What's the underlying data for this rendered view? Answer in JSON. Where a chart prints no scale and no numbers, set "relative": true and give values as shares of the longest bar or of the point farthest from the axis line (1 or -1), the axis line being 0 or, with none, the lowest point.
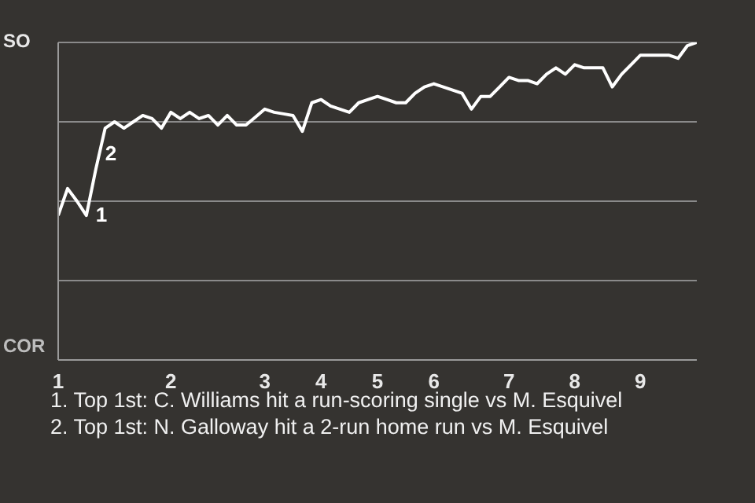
{
  "chart_data": {
    "type": "line",
    "relative": true,
    "categories": [
      "1",
      null,
      null,
      null,
      null,
      null,
      null,
      null,
      null,
      null,
      null,
      null,
      "2",
      null,
      null,
      null,
      null,
      null,
      null,
      null,
      null,
      null,
      "3",
      null,
      null,
      null,
      null,
      null,
      "4",
      null,
      null,
      null,
      null,
      null,
      "5",
      null,
      null,
      null,
      null,
      null,
      "6",
      null,
      null,
      null,
      null,
      null,
      null,
      null,
      "7",
      null,
      null,
      null,
      null,
      null,
      null,
      "8",
      null,
      null,
      null,
      null,
      null,
      null,
      "9",
      null,
      null,
      null,
      null,
      null,
      null
    ],
    "series": [
      {
        "color": "#ffffff",
        "values": [
          0.455,
          0.54,
          0.5,
          0.455,
          0.6,
          0.73,
          0.75,
          0.73,
          0.75,
          0.77,
          0.76,
          0.73,
          0.78,
          0.76,
          0.78,
          0.76,
          0.77,
          0.74,
          0.77,
          0.74,
          0.74,
          0.765,
          0.79,
          0.78,
          0.775,
          0.77,
          0.72,
          0.81,
          0.82,
          0.8,
          0.79,
          0.78,
          0.81,
          0.82,
          0.83,
          0.82,
          0.81,
          0.81,
          0.84,
          0.86,
          0.87,
          0.86,
          0.85,
          0.84,
          0.79,
          0.83,
          0.83,
          0.86,
          0.89,
          0.88,
          0.88,
          0.87,
          0.9,
          0.92,
          0.9,
          0.93,
          0.92,
          0.92,
          0.92,
          0.86,
          0.9,
          0.93,
          0.96,
          0.96,
          0.96,
          0.96,
          0.95,
          0.99,
          1.0
        ]
      }
    ],
    "grid": "y",
    "marker": "none",
    "line_style": "solid",
    "annotations": [
      "SO",
      "COR",
      "1",
      "2",
      "1. Top 1st: C. Williams hit a run-scoring single vs M. Esquivel",
      "2. Top 1st: N. Galloway hit a 2-run home run vs M. Esquivel"
    ]
  }
}
